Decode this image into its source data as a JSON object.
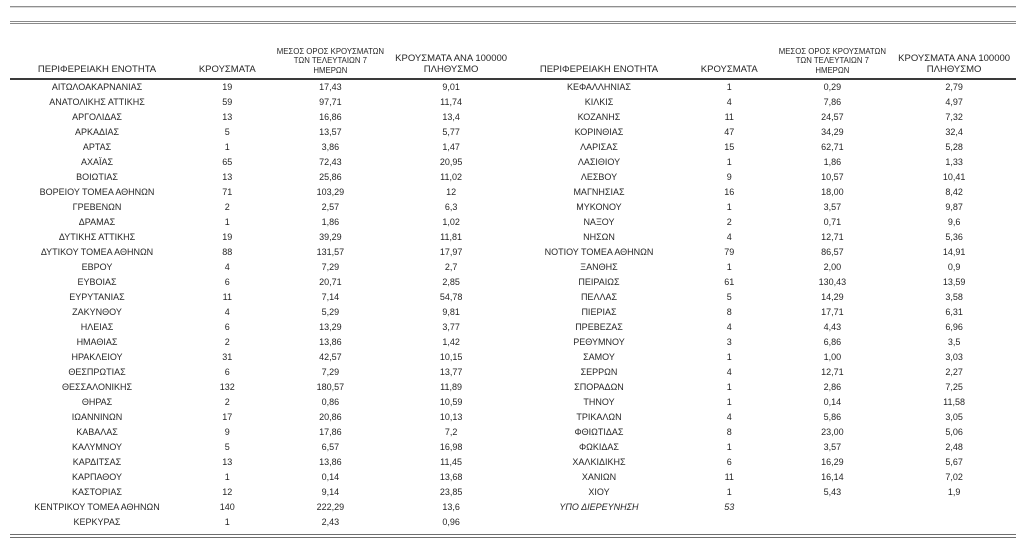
{
  "table": {
    "headers": {
      "region": "ΠΕΡΙΦΕΡΕΙΑΚΗ ΕΝΟΤΗΤΑ",
      "cases": "ΚΡΟΥΣΜΑΤΑ",
      "avg7_lines": [
        "ΜΕΣΟΣ ΟΡΟΣ ΚΡΟΥΣΜΑΤΩΝ",
        "ΤΩΝ ΤΕΛΕΥΤΑΙΩΝ 7",
        "ΗΜΕΡΩΝ"
      ],
      "per100k_lines": [
        "ΚΡΟΥΣΜΑΤΑ ΑΝΑ 100000",
        "ΠΛΗΘΥΣΜΟ"
      ]
    },
    "left_rows": [
      {
        "region": "ΑΙΤΩΛΟΑΚΑΡΝΑΝΙΑΣ",
        "cases": "19",
        "avg7": "17,43",
        "per100k": "9,01"
      },
      {
        "region": "ΑΝΑΤΟΛΙΚΗΣ ΑΤΤΙΚΗΣ",
        "cases": "59",
        "avg7": "97,71",
        "per100k": "11,74"
      },
      {
        "region": "ΑΡΓΟΛΙΔΑΣ",
        "cases": "13",
        "avg7": "16,86",
        "per100k": "13,4"
      },
      {
        "region": "ΑΡΚΑΔΙΑΣ",
        "cases": "5",
        "avg7": "13,57",
        "per100k": "5,77"
      },
      {
        "region": "ΑΡΤΑΣ",
        "cases": "1",
        "avg7": "3,86",
        "per100k": "1,47"
      },
      {
        "region": "ΑΧΑΪΑΣ",
        "cases": "65",
        "avg7": "72,43",
        "per100k": "20,95"
      },
      {
        "region": "ΒΟΙΩΤΙΑΣ",
        "cases": "13",
        "avg7": "25,86",
        "per100k": "11,02"
      },
      {
        "region": "ΒΟΡΕΙΟΥ ΤΟΜΕΑ ΑΘΗΝΩΝ",
        "cases": "71",
        "avg7": "103,29",
        "per100k": "12"
      },
      {
        "region": "ΓΡΕΒΕΝΩΝ",
        "cases": "2",
        "avg7": "2,57",
        "per100k": "6,3"
      },
      {
        "region": "ΔΡΑΜΑΣ",
        "cases": "1",
        "avg7": "1,86",
        "per100k": "1,02"
      },
      {
        "region": "ΔΥΤΙΚΗΣ ΑΤΤΙΚΗΣ",
        "cases": "19",
        "avg7": "39,29",
        "per100k": "11,81"
      },
      {
        "region": "ΔΥΤΙΚΟΥ ΤΟΜΕΑ ΑΘΗΝΩΝ",
        "cases": "88",
        "avg7": "131,57",
        "per100k": "17,97"
      },
      {
        "region": "ΕΒΡΟΥ",
        "cases": "4",
        "avg7": "7,29",
        "per100k": "2,7"
      },
      {
        "region": "ΕΥΒΟΙΑΣ",
        "cases": "6",
        "avg7": "20,71",
        "per100k": "2,85"
      },
      {
        "region": "ΕΥΡΥΤΑΝΙΑΣ",
        "cases": "11",
        "avg7": "7,14",
        "per100k": "54,78"
      },
      {
        "region": "ΖΑΚΥΝΘΟΥ",
        "cases": "4",
        "avg7": "5,29",
        "per100k": "9,81"
      },
      {
        "region": "ΗΛΕΙΑΣ",
        "cases": "6",
        "avg7": "13,29",
        "per100k": "3,77"
      },
      {
        "region": "ΗΜΑΘΙΑΣ",
        "cases": "2",
        "avg7": "13,86",
        "per100k": "1,42"
      },
      {
        "region": "ΗΡΑΚΛΕΙΟΥ",
        "cases": "31",
        "avg7": "42,57",
        "per100k": "10,15"
      },
      {
        "region": "ΘΕΣΠΡΩΤΙΑΣ",
        "cases": "6",
        "avg7": "7,29",
        "per100k": "13,77"
      },
      {
        "region": "ΘΕΣΣΑΛΟΝΙΚΗΣ",
        "cases": "132",
        "avg7": "180,57",
        "per100k": "11,89"
      },
      {
        "region": "ΘΗΡΑΣ",
        "cases": "2",
        "avg7": "0,86",
        "per100k": "10,59"
      },
      {
        "region": "ΙΩΑΝΝΙΝΩΝ",
        "cases": "17",
        "avg7": "20,86",
        "per100k": "10,13"
      },
      {
        "region": "ΚΑΒΑΛΑΣ",
        "cases": "9",
        "avg7": "17,86",
        "per100k": "7,2"
      },
      {
        "region": "ΚΑΛΥΜΝΟΥ",
        "cases": "5",
        "avg7": "6,57",
        "per100k": "16,98"
      },
      {
        "region": "ΚΑΡΔΙΤΣΑΣ",
        "cases": "13",
        "avg7": "13,86",
        "per100k": "11,45"
      },
      {
        "region": "ΚΑΡΠΑΘΟΥ",
        "cases": "1",
        "avg7": "0,14",
        "per100k": "13,68"
      },
      {
        "region": "ΚΑΣΤΟΡΙΑΣ",
        "cases": "12",
        "avg7": "9,14",
        "per100k": "23,85"
      },
      {
        "region": "ΚΕΝΤΡΙΚΟΥ ΤΟΜΕΑ ΑΘΗΝΩΝ",
        "cases": "140",
        "avg7": "222,29",
        "per100k": "13,6"
      },
      {
        "region": "ΚΕΡΚΥΡΑΣ",
        "cases": "1",
        "avg7": "2,43",
        "per100k": "0,96"
      }
    ],
    "right_rows": [
      {
        "region": "ΚΕΦΑΛΛΗΝΙΑΣ",
        "cases": "1",
        "avg7": "0,29",
        "per100k": "2,79"
      },
      {
        "region": "ΚΙΛΚΙΣ",
        "cases": "4",
        "avg7": "7,86",
        "per100k": "4,97"
      },
      {
        "region": "ΚΟΖΑΝΗΣ",
        "cases": "11",
        "avg7": "24,57",
        "per100k": "7,32"
      },
      {
        "region": "ΚΟΡΙΝΘΙΑΣ",
        "cases": "47",
        "avg7": "34,29",
        "per100k": "32,4"
      },
      {
        "region": "ΛΑΡΙΣΑΣ",
        "cases": "15",
        "avg7": "62,71",
        "per100k": "5,28"
      },
      {
        "region": "ΛΑΣΙΘΙΟΥ",
        "cases": "1",
        "avg7": "1,86",
        "per100k": "1,33"
      },
      {
        "region": "ΛΕΣΒΟΥ",
        "cases": "9",
        "avg7": "10,57",
        "per100k": "10,41"
      },
      {
        "region": "ΜΑΓΝΗΣΙΑΣ",
        "cases": "16",
        "avg7": "18,00",
        "per100k": "8,42"
      },
      {
        "region": "ΜΥΚΟΝΟΥ",
        "cases": "1",
        "avg7": "3,57",
        "per100k": "9,87"
      },
      {
        "region": "ΝΑΞΟΥ",
        "cases": "2",
        "avg7": "0,71",
        "per100k": "9,6"
      },
      {
        "region": "ΝΗΣΩΝ",
        "cases": "4",
        "avg7": "12,71",
        "per100k": "5,36"
      },
      {
        "region": "ΝΟΤΙΟΥ ΤΟΜΕΑ ΑΘΗΝΩΝ",
        "cases": "79",
        "avg7": "86,57",
        "per100k": "14,91"
      },
      {
        "region": "ΞΑΝΘΗΣ",
        "cases": "1",
        "avg7": "2,00",
        "per100k": "0,9"
      },
      {
        "region": "ΠΕΙΡΑΙΩΣ",
        "cases": "61",
        "avg7": "130,43",
        "per100k": "13,59"
      },
      {
        "region": "ΠΕΛΛΑΣ",
        "cases": "5",
        "avg7": "14,29",
        "per100k": "3,58"
      },
      {
        "region": "ΠΙΕΡΙΑΣ",
        "cases": "8",
        "avg7": "17,71",
        "per100k": "6,31"
      },
      {
        "region": "ΠΡΕΒΕΖΑΣ",
        "cases": "4",
        "avg7": "4,43",
        "per100k": "6,96"
      },
      {
        "region": "ΡΕΘΥΜΝΟΥ",
        "cases": "3",
        "avg7": "6,86",
        "per100k": "3,5"
      },
      {
        "region": "ΣΑΜΟΥ",
        "cases": "1",
        "avg7": "1,00",
        "per100k": "3,03"
      },
      {
        "region": "ΣΕΡΡΩΝ",
        "cases": "4",
        "avg7": "12,71",
        "per100k": "2,27"
      },
      {
        "region": "ΣΠΟΡΑΔΩΝ",
        "cases": "1",
        "avg7": "2,86",
        "per100k": "7,25"
      },
      {
        "region": "ΤΗΝΟΥ",
        "cases": "1",
        "avg7": "0,14",
        "per100k": "11,58"
      },
      {
        "region": "ΤΡΙΚΑΛΩΝ",
        "cases": "4",
        "avg7": "5,86",
        "per100k": "3,05"
      },
      {
        "region": "ΦΘΙΩΤΙΔΑΣ",
        "cases": "8",
        "avg7": "23,00",
        "per100k": "5,06"
      },
      {
        "region": "ΦΩΚΙΔΑΣ",
        "cases": "1",
        "avg7": "3,57",
        "per100k": "2,48"
      },
      {
        "region": "ΧΑΛΚΙΔΙΚΗΣ",
        "cases": "6",
        "avg7": "16,29",
        "per100k": "5,67"
      },
      {
        "region": "ΧΑΝΙΩΝ",
        "cases": "11",
        "avg7": "16,14",
        "per100k": "7,02"
      },
      {
        "region": "ΧΙΟΥ",
        "cases": "1",
        "avg7": "5,43",
        "per100k": "1,9"
      },
      {
        "region": "ΥΠΟ ΔΙΕΡΕΥΝΗΣΗ",
        "cases": "53",
        "avg7": "",
        "per100k": "",
        "italic": true
      }
    ]
  }
}
